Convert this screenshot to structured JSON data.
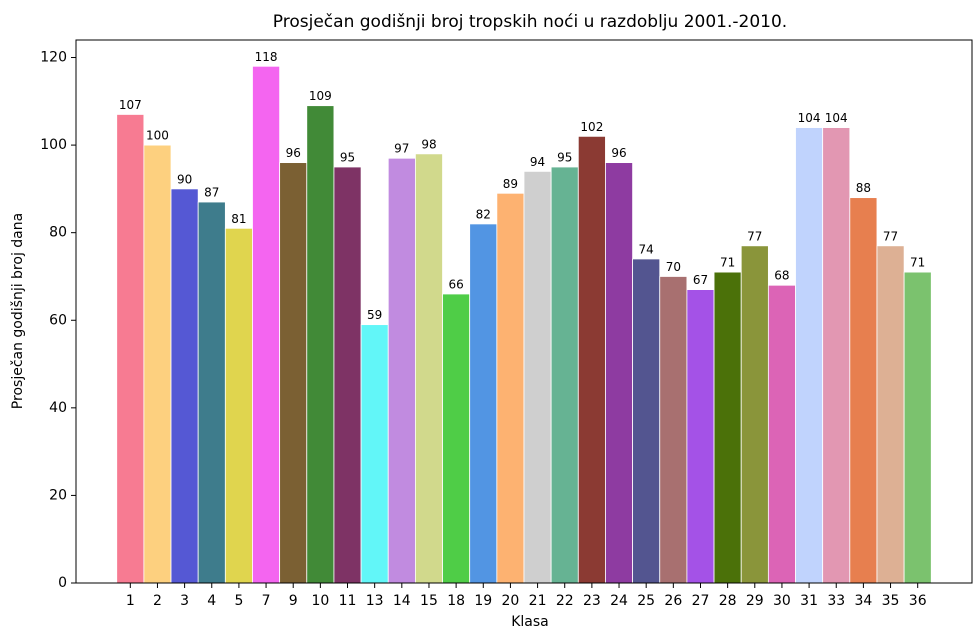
{
  "chart_data": {
    "type": "bar",
    "title": "Prosječan godišnji broj tropskih noći u razdoblju 2001.-2010.",
    "x_label": "Klasa",
    "y_label": "Prosječan godišnji broj dana",
    "categories": [
      "1",
      "2",
      "3",
      "4",
      "5",
      "7",
      "9",
      "10",
      "11",
      "13",
      "14",
      "15",
      "18",
      "19",
      "20",
      "21",
      "22",
      "23",
      "24",
      "25",
      "26",
      "27",
      "28",
      "29",
      "30",
      "31",
      "33",
      "34",
      "35",
      "36"
    ],
    "values": [
      107,
      100,
      90,
      87,
      81,
      118,
      96,
      109,
      95,
      59,
      97,
      98,
      66,
      82,
      89,
      94,
      95,
      102,
      96,
      74,
      70,
      67,
      71,
      77,
      68,
      104,
      104,
      88,
      77,
      71
    ],
    "colors": [
      "#f77b92",
      "#fdd07f",
      "#5558d4",
      "#3e7c8c",
      "#e0d54e",
      "#f465f0",
      "#7b6033",
      "#418a37",
      "#7e3365",
      "#62f6f8",
      "#c18be0",
      "#d1d98c",
      "#4fcd47",
      "#5295e3",
      "#fdb271",
      "#cfcfcf",
      "#66b393",
      "#8b3a33",
      "#8e3ba1",
      "#535590",
      "#a87070",
      "#a452e7",
      "#4b7109",
      "#8a953a",
      "#dc64b6",
      "#c0d3fd",
      "#e297b2",
      "#e77f4f",
      "#ddb094",
      "#7bc26e"
    ],
    "ylim": [
      0,
      124
    ],
    "yticks": [
      0,
      20,
      40,
      60,
      80,
      100,
      120
    ],
    "grid": false
  }
}
